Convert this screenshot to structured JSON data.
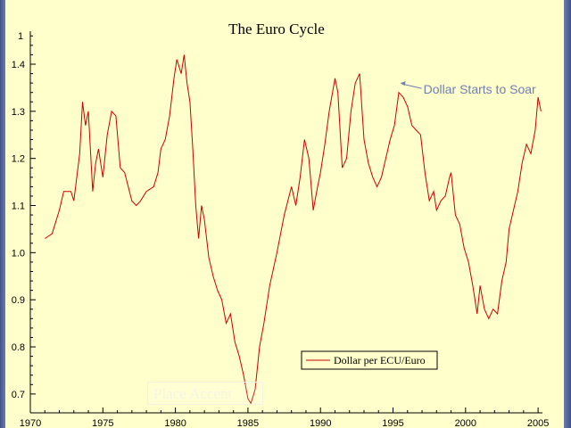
{
  "chart_data": {
    "type": "line",
    "title": "The Euro Cycle",
    "xlabel": "",
    "ylabel": "",
    "xlim": [
      1970,
      2005.3
    ],
    "ylim": [
      0.66,
      1.47
    ],
    "x_ticks": [
      1970,
      1975,
      1980,
      1985,
      1990,
      1995,
      2000,
      2005
    ],
    "y_ticks": [
      0.7,
      0.8,
      0.9,
      1.0,
      1.1,
      1.2,
      1.3,
      1.4
    ],
    "y_tick_labels": [
      "0.7",
      "0.8",
      "0.9",
      "1.0",
      "1.1",
      "1.2",
      "1.3",
      "1.4"
    ],
    "y_top_partial_label": "1",
    "grid": false,
    "legend_position": "bottom-center",
    "series": [
      {
        "name": "Dollar per ECU/Euro",
        "color": "#cc0000",
        "points": [
          [
            1971.0,
            1.03
          ],
          [
            1971.5,
            1.04
          ],
          [
            1972.0,
            1.09
          ],
          [
            1972.3,
            1.13
          ],
          [
            1972.8,
            1.13
          ],
          [
            1973.0,
            1.11
          ],
          [
            1973.4,
            1.21
          ],
          [
            1973.6,
            1.32
          ],
          [
            1973.8,
            1.27
          ],
          [
            1974.0,
            1.3
          ],
          [
            1974.3,
            1.13
          ],
          [
            1974.5,
            1.19
          ],
          [
            1974.7,
            1.22
          ],
          [
            1975.0,
            1.16
          ],
          [
            1975.3,
            1.25
          ],
          [
            1975.6,
            1.3
          ],
          [
            1975.9,
            1.29
          ],
          [
            1976.2,
            1.18
          ],
          [
            1976.5,
            1.17
          ],
          [
            1977.0,
            1.11
          ],
          [
            1977.3,
            1.1
          ],
          [
            1977.6,
            1.11
          ],
          [
            1978.0,
            1.13
          ],
          [
            1978.5,
            1.14
          ],
          [
            1978.8,
            1.17
          ],
          [
            1979.0,
            1.22
          ],
          [
            1979.3,
            1.24
          ],
          [
            1979.6,
            1.29
          ],
          [
            1979.9,
            1.37
          ],
          [
            1980.1,
            1.41
          ],
          [
            1980.4,
            1.38
          ],
          [
            1980.6,
            1.42
          ],
          [
            1980.8,
            1.36
          ],
          [
            1981.0,
            1.32
          ],
          [
            1981.2,
            1.22
          ],
          [
            1981.4,
            1.1
          ],
          [
            1981.6,
            1.03
          ],
          [
            1981.8,
            1.1
          ],
          [
            1982.0,
            1.07
          ],
          [
            1982.3,
            0.99
          ],
          [
            1982.6,
            0.95
          ],
          [
            1982.9,
            0.92
          ],
          [
            1983.2,
            0.9
          ],
          [
            1983.5,
            0.85
          ],
          [
            1983.8,
            0.87
          ],
          [
            1984.1,
            0.81
          ],
          [
            1984.4,
            0.78
          ],
          [
            1984.7,
            0.74
          ],
          [
            1985.0,
            0.69
          ],
          [
            1985.2,
            0.68
          ],
          [
            1985.5,
            0.71
          ],
          [
            1985.8,
            0.8
          ],
          [
            1986.1,
            0.85
          ],
          [
            1986.5,
            0.93
          ],
          [
            1987.0,
            1.0
          ],
          [
            1987.5,
            1.08
          ],
          [
            1988.0,
            1.14
          ],
          [
            1988.3,
            1.1
          ],
          [
            1988.6,
            1.16
          ],
          [
            1988.9,
            1.24
          ],
          [
            1989.2,
            1.2
          ],
          [
            1989.5,
            1.09
          ],
          [
            1989.8,
            1.14
          ],
          [
            1990.0,
            1.17
          ],
          [
            1990.3,
            1.23
          ],
          [
            1990.6,
            1.3
          ],
          [
            1991.0,
            1.37
          ],
          [
            1991.2,
            1.34
          ],
          [
            1991.5,
            1.18
          ],
          [
            1991.8,
            1.2
          ],
          [
            1992.1,
            1.3
          ],
          [
            1992.4,
            1.36
          ],
          [
            1992.7,
            1.38
          ],
          [
            1993.0,
            1.24
          ],
          [
            1993.3,
            1.19
          ],
          [
            1993.6,
            1.16
          ],
          [
            1993.9,
            1.14
          ],
          [
            1994.2,
            1.16
          ],
          [
            1994.5,
            1.2
          ],
          [
            1994.8,
            1.24
          ],
          [
            1995.1,
            1.27
          ],
          [
            1995.4,
            1.34
          ],
          [
            1995.7,
            1.33
          ],
          [
            1996.0,
            1.31
          ],
          [
            1996.3,
            1.27
          ],
          [
            1996.6,
            1.26
          ],
          [
            1996.9,
            1.25
          ],
          [
            1997.2,
            1.17
          ],
          [
            1997.5,
            1.11
          ],
          [
            1997.8,
            1.13
          ],
          [
            1998.0,
            1.09
          ],
          [
            1998.3,
            1.11
          ],
          [
            1998.6,
            1.12
          ],
          [
            1998.9,
            1.16
          ],
          [
            1999.0,
            1.17
          ],
          [
            1999.3,
            1.08
          ],
          [
            1999.6,
            1.06
          ],
          [
            1999.9,
            1.01
          ],
          [
            2000.2,
            0.98
          ],
          [
            2000.5,
            0.93
          ],
          [
            2000.8,
            0.87
          ],
          [
            2001.0,
            0.93
          ],
          [
            2001.3,
            0.88
          ],
          [
            2001.6,
            0.86
          ],
          [
            2001.9,
            0.88
          ],
          [
            2002.2,
            0.87
          ],
          [
            2002.5,
            0.94
          ],
          [
            2002.8,
            0.98
          ],
          [
            2003.0,
            1.05
          ],
          [
            2003.3,
            1.09
          ],
          [
            2003.6,
            1.13
          ],
          [
            2003.9,
            1.19
          ],
          [
            2004.2,
            1.23
          ],
          [
            2004.5,
            1.21
          ],
          [
            2004.8,
            1.26
          ],
          [
            2005.0,
            1.33
          ],
          [
            2005.2,
            1.3
          ]
        ]
      }
    ],
    "annotations": [
      {
        "text": "Dollar Starts to Soar",
        "x": 1995.5,
        "y": 1.36,
        "color": "#6f7fb0"
      }
    ]
  },
  "overlay": {
    "placeholder_text": "Place Accent"
  }
}
